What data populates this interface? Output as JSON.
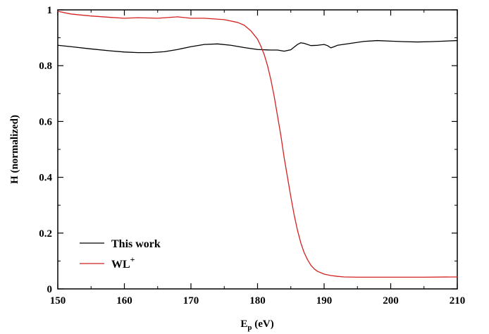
{
  "chart_data": {
    "type": "line",
    "xlabel": {
      "main": "E",
      "sub": "p",
      "rest": " (eV)"
    },
    "ylabel": "H (normalized)",
    "xlim": [
      150,
      210
    ],
    "ylim": [
      0,
      1
    ],
    "xticks": [
      150,
      160,
      170,
      180,
      190,
      200,
      210
    ],
    "yticks": [
      0,
      0.2,
      0.4,
      0.6,
      0.8,
      1
    ],
    "ytick_labels": [
      "0",
      "0.2",
      "0.4",
      "0.6",
      "0.8",
      "1"
    ],
    "legend_position": "bottom-left",
    "series": [
      {
        "name": "This work",
        "color": "#000000",
        "x": [
          150,
          152,
          155,
          158,
          160,
          162,
          164,
          166,
          168,
          170,
          172,
          174,
          176,
          178,
          180,
          182,
          183,
          184,
          185,
          186,
          186.5,
          187,
          188,
          189,
          190,
          190.5,
          191,
          191.5,
          192,
          194,
          196,
          198,
          200,
          202,
          204,
          206,
          208,
          210
        ],
        "y": [
          0.873,
          0.868,
          0.86,
          0.853,
          0.849,
          0.847,
          0.847,
          0.85,
          0.858,
          0.868,
          0.876,
          0.878,
          0.873,
          0.865,
          0.858,
          0.856,
          0.856,
          0.852,
          0.857,
          0.876,
          0.882,
          0.88,
          0.872,
          0.873,
          0.876,
          0.872,
          0.864,
          0.868,
          0.873,
          0.88,
          0.887,
          0.89,
          0.888,
          0.886,
          0.885,
          0.886,
          0.888,
          0.89
        ]
      },
      {
        "name": "WL",
        "name_sup": "+",
        "color": "#d42121",
        "x": [
          150,
          152,
          155,
          158,
          160,
          162,
          165,
          168,
          170,
          172,
          175,
          177,
          178,
          179,
          180,
          180.5,
          181,
          181.5,
          182,
          182.5,
          183,
          183.5,
          184,
          184.5,
          185,
          185.5,
          186,
          186.5,
          187,
          187.5,
          188,
          188.5,
          189,
          190,
          191,
          192,
          193,
          195,
          200,
          205,
          210
        ],
        "y": [
          0.995,
          0.985,
          0.978,
          0.973,
          0.97,
          0.972,
          0.97,
          0.975,
          0.97,
          0.97,
          0.965,
          0.955,
          0.945,
          0.925,
          0.895,
          0.87,
          0.84,
          0.8,
          0.75,
          0.69,
          0.62,
          0.55,
          0.47,
          0.4,
          0.33,
          0.265,
          0.21,
          0.165,
          0.13,
          0.105,
          0.085,
          0.072,
          0.063,
          0.053,
          0.048,
          0.045,
          0.043,
          0.042,
          0.042,
          0.042,
          0.043
        ]
      }
    ]
  }
}
